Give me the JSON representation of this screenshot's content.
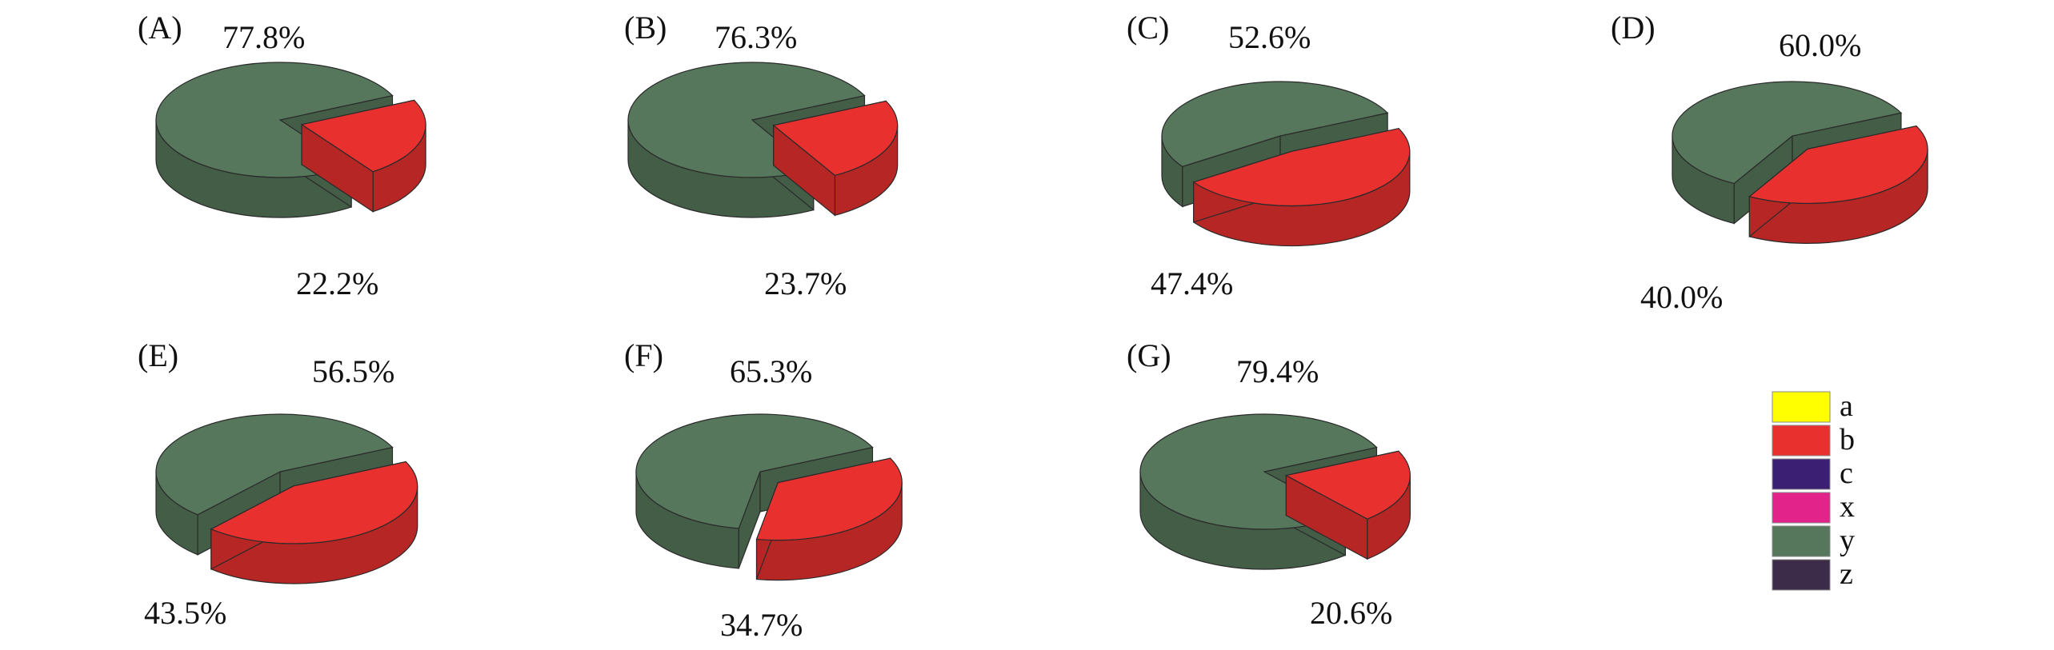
{
  "colors": {
    "a": "#ffff00",
    "b": "#e8312f",
    "c": "#3b1f73",
    "x": "#e1238a",
    "y": "#56775b",
    "z": "#3c2c4a",
    "edge": "#2a2a2a"
  },
  "legend": [
    {
      "key": "a",
      "label": "a"
    },
    {
      "key": "b",
      "label": "b"
    },
    {
      "key": "c",
      "label": "c"
    },
    {
      "key": "x",
      "label": "x"
    },
    {
      "key": "y",
      "label": "y"
    },
    {
      "key": "z",
      "label": "z"
    }
  ],
  "chart_data": [
    {
      "type": "pie",
      "panel": "(A)",
      "slices": [
        {
          "series": "y",
          "value": 77.8,
          "label": "77.8%"
        },
        {
          "series": "b",
          "value": 22.2,
          "label": "22.2%"
        }
      ]
    },
    {
      "type": "pie",
      "panel": "(B)",
      "slices": [
        {
          "series": "y",
          "value": 76.3,
          "label": "76.3%"
        },
        {
          "series": "b",
          "value": 23.7,
          "label": "23.7%"
        }
      ]
    },
    {
      "type": "pie",
      "panel": "(C)",
      "slices": [
        {
          "series": "y",
          "value": 52.6,
          "label": "52.6%"
        },
        {
          "series": "b",
          "value": 47.4,
          "label": "47.4%"
        }
      ]
    },
    {
      "type": "pie",
      "panel": "(D)",
      "slices": [
        {
          "series": "y",
          "value": 60.0,
          "label": "60.0%"
        },
        {
          "series": "b",
          "value": 40.0,
          "label": "40.0%"
        }
      ]
    },
    {
      "type": "pie",
      "panel": "(E)",
      "slices": [
        {
          "series": "y",
          "value": 56.5,
          "label": "56.5%"
        },
        {
          "series": "b",
          "value": 43.5,
          "label": "43.5%"
        }
      ]
    },
    {
      "type": "pie",
      "panel": "(F)",
      "slices": [
        {
          "series": "y",
          "value": 65.3,
          "label": "65.3%"
        },
        {
          "series": "b",
          "value": 34.7,
          "label": "34.7%"
        }
      ]
    },
    {
      "type": "pie",
      "panel": "(G)",
      "slices": [
        {
          "series": "y",
          "value": 79.4,
          "label": "79.4%"
        },
        {
          "series": "b",
          "value": 20.6,
          "label": "20.6%"
        }
      ]
    }
  ]
}
